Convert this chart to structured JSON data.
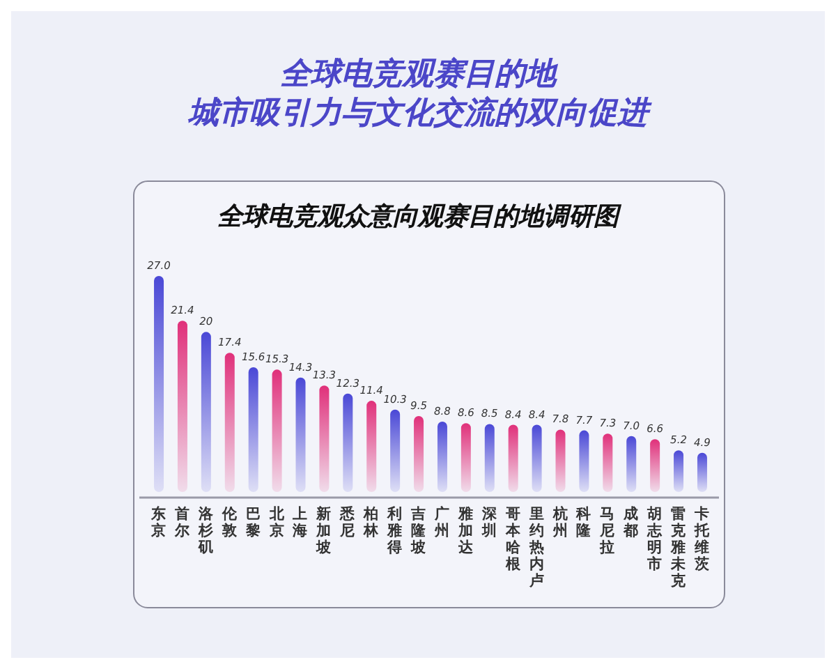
{
  "chart_data": {
    "type": "bar",
    "title": "全球电竞观赛目的地",
    "subtitle": "城市吸引力与文化交流的双向促进",
    "annotations": [
      "全球电竞观众意向观赛目的地调研图"
    ],
    "relative": false,
    "categories": [
      "东京",
      "首尔",
      "洛杉矶",
      "伦敦",
      "巴黎",
      "北京",
      "上海",
      "新加坡",
      "悉尼",
      "柏林",
      "利雅得",
      "吉隆坡",
      "广州",
      "雅加达",
      "深圳",
      "哥本哈根",
      "里约热内卢",
      "杭州",
      "科隆",
      "马尼拉",
      "成都",
      "胡志明市",
      "雷克雅未克",
      "卡托维茨"
    ],
    "values": [
      27.0,
      21.4,
      20,
      17.4,
      15.6,
      15.3,
      14.3,
      13.3,
      12.3,
      11.4,
      10.3,
      9.5,
      8.8,
      8.6,
      8.5,
      8.4,
      8.4,
      7.8,
      7.7,
      7.3,
      7.0,
      6.6,
      5.2,
      4.9
    ],
    "value_labels": [
      "27.0",
      "21.4",
      "20",
      "17.4",
      "15.6",
      "15.3",
      "14.3",
      "13.3",
      "12.3",
      "11.4",
      "10.3",
      "9.5",
      "8.8",
      "8.6",
      "8.5",
      "8.4",
      "8.4",
      "7.8",
      "7.7",
      "7.3",
      "7.0",
      "6.6",
      "5.2",
      "4.9"
    ],
    "colors": [
      "#4a48d6",
      "#e0307a",
      "#4a48d6",
      "#e0307a",
      "#4a48d6",
      "#e0307a",
      "#4a48d6",
      "#e0307a",
      "#4a48d6",
      "#e0307a",
      "#4a48d6",
      "#e0307a",
      "#4a48d6",
      "#e0307a",
      "#4a48d6",
      "#e0307a",
      "#4a48d6",
      "#e0307a",
      "#4a48d6",
      "#e0307a",
      "#4a48d6",
      "#e0307a",
      "#4a48d6",
      "#4a48d6"
    ]
  }
}
